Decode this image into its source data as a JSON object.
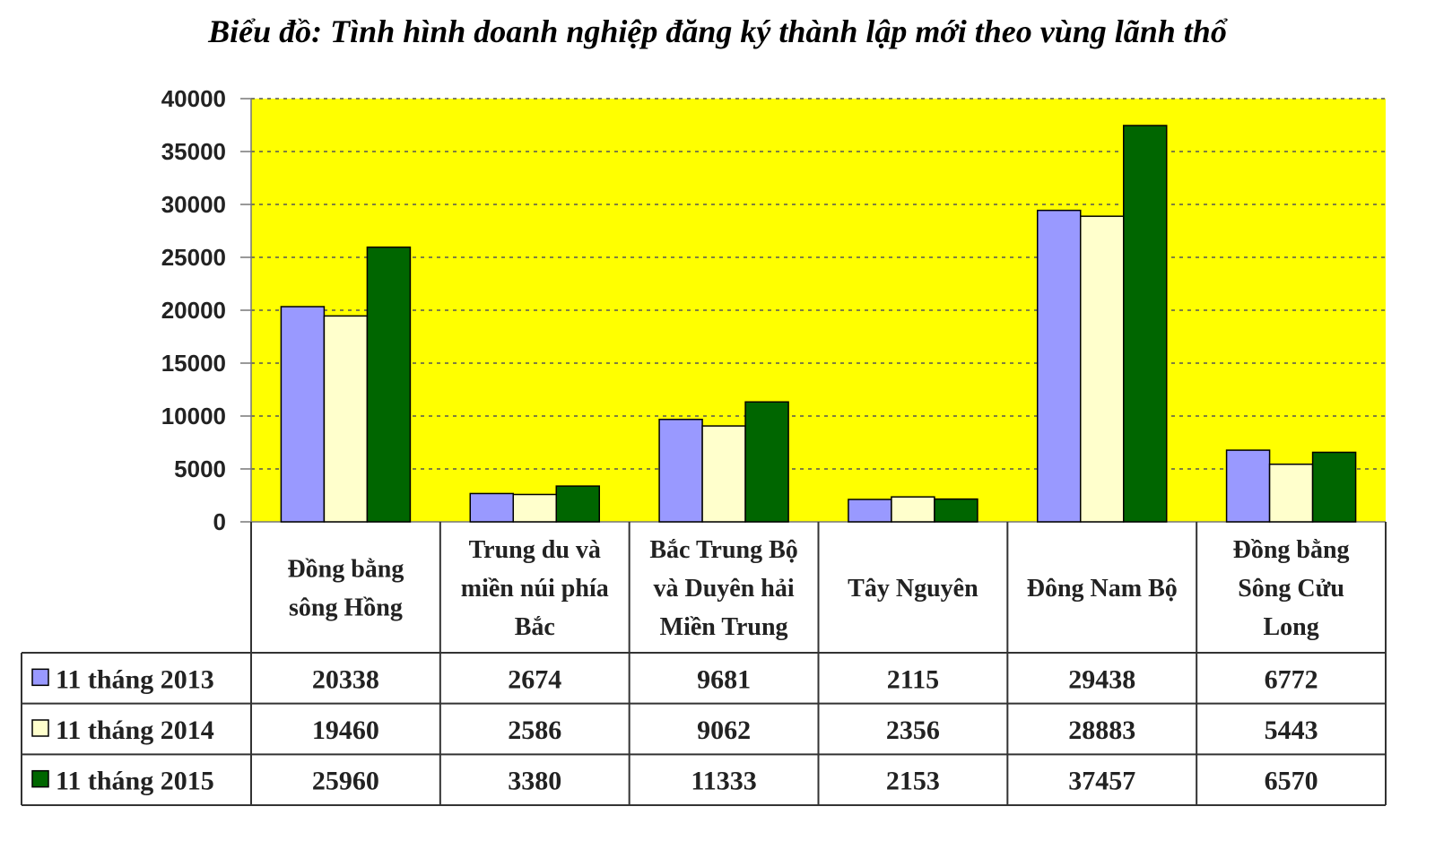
{
  "chart_data": {
    "type": "bar",
    "title": "Biểu đồ: Tình hình doanh nghiệp đăng ký thành lập mới theo vùng lãnh thổ",
    "categories": [
      [
        "Đồng bằng",
        "sông Hồng"
      ],
      [
        "Trung du và",
        "miền núi phía",
        "Bắc"
      ],
      [
        "Bắc Trung Bộ",
        "và Duyên hải",
        "Miền Trung"
      ],
      [
        "Tây Nguyên"
      ],
      [
        "Đông Nam Bộ"
      ],
      [
        "Đồng bằng",
        "Sông Cửu",
        "Long"
      ]
    ],
    "series": [
      {
        "name": "11 tháng 2013",
        "color": "#9999ff",
        "values": [
          20338,
          2674,
          9681,
          2115,
          29438,
          6772
        ]
      },
      {
        "name": "11 tháng 2014",
        "color": "#ffffcc",
        "values": [
          19460,
          2586,
          9062,
          2356,
          28883,
          5443
        ]
      },
      {
        "name": "11 tháng 2015",
        "color": "#006600",
        "values": [
          25960,
          3380,
          11333,
          2153,
          37457,
          6570
        ]
      }
    ],
    "ylim": [
      0,
      40000
    ],
    "yticks": [
      0,
      5000,
      10000,
      15000,
      20000,
      25000,
      30000,
      35000,
      40000
    ],
    "plot_background": "#ffff00",
    "grid": true,
    "legend": "data-table"
  }
}
